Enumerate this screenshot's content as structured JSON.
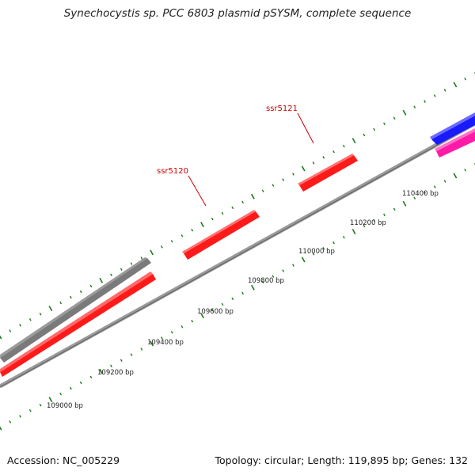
{
  "title": "Synechocystis sp. PCC 6803 plasmid pSYSM, complete sequence",
  "footer": {
    "accession": "Accession: NC_005229",
    "summary": "Topology: circular; Length: 119,895 bp; Genes: 132"
  },
  "colors": {
    "backbone": "#888888",
    "tick": "#1a7a1a",
    "gene_red": "#ff1a1a",
    "gene_gray": "#6e6e6e",
    "gene_blue": "#1a1aff",
    "gene_magenta": "#ff1aa8",
    "label_red": "#cc0000"
  },
  "ruler_labels": [
    "109000 bp",
    "109200 bp",
    "109400 bp",
    "109600 bp",
    "109800 bp",
    "110000 bp",
    "110200 bp",
    "110400 bp"
  ],
  "gene_labels": [
    "ssr5120",
    "ssr5121"
  ]
}
